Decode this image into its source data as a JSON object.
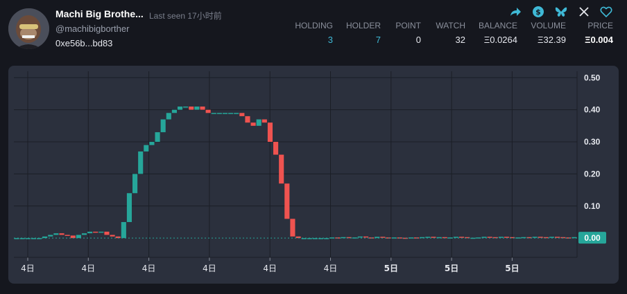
{
  "profile": {
    "name": "Machi Big Brothe...",
    "last_seen": "Last seen 17小时前",
    "handle": "@machibigborther",
    "address": "0xe56b...bd83"
  },
  "header_icons": [
    "share-icon",
    "dollar-icon",
    "butterfly-icon",
    "x-icon",
    "heart-icon"
  ],
  "stats": [
    {
      "label": "HOLDING",
      "value": "3"
    },
    {
      "label": "HOLDER",
      "value": "7"
    },
    {
      "label": "POINT",
      "value": "0"
    },
    {
      "label": "WATCH",
      "value": "32"
    },
    {
      "label": "BALANCE",
      "value": "Ξ0.0264"
    },
    {
      "label": "VOLUME",
      "value": "Ξ32.39"
    },
    {
      "label": "PRICE",
      "value": "Ξ0.004"
    }
  ],
  "colors": {
    "up": "#26a69a",
    "down": "#ef5350",
    "accent": "#3fb9d6",
    "panel": "#2b303d",
    "background": "#15171e"
  },
  "chart_data": {
    "type": "candlestick",
    "ylim": [
      -0.06,
      0.52
    ],
    "y_ticks": [
      "0.50",
      "0.40",
      "0.30",
      "0.20",
      "0.10"
    ],
    "x_tick_labels": [
      "4日",
      "4日",
      "4日",
      "4日",
      "4日",
      "4日",
      "5日",
      "5日",
      "5日"
    ],
    "current_price_label": "0.00",
    "current_price": 0.0,
    "candles_close": [
      0.0,
      0.0,
      0.0,
      0.0,
      0.0,
      0.005,
      0.01,
      0.015,
      0.01,
      0.008,
      0.0,
      0.01,
      0.015,
      0.02,
      0.018,
      0.02,
      0.01,
      0.005,
      0.0,
      0.05,
      0.14,
      0.2,
      0.27,
      0.29,
      0.3,
      0.33,
      0.37,
      0.39,
      0.4,
      0.41,
      0.41,
      0.4,
      0.41,
      0.4,
      0.39,
      0.39,
      0.39,
      0.39,
      0.39,
      0.39,
      0.38,
      0.36,
      0.35,
      0.37,
      0.36,
      0.3,
      0.26,
      0.17,
      0.06,
      0.005,
      0.0,
      0.0,
      0.0,
      0.0,
      0.0,
      0.0,
      0.002,
      0.0,
      0.003,
      0.0,
      0.002,
      0.005,
      0.002,
      0.0,
      0.004,
      0.002,
      0.0,
      0.002,
      0.001,
      0.0,
      0.002,
      0.0,
      0.003,
      0.004,
      0.002,
      0.003,
      0.0,
      0.002,
      0.004,
      0.003,
      0.0,
      0.001,
      0.002,
      0.004,
      0.003,
      0.002,
      0.004,
      0.003,
      0.001,
      0.002,
      0.003,
      0.002,
      0.004,
      0.003,
      0.002,
      0.004,
      0.003,
      0.002,
      0.0,
      0.003
    ]
  }
}
